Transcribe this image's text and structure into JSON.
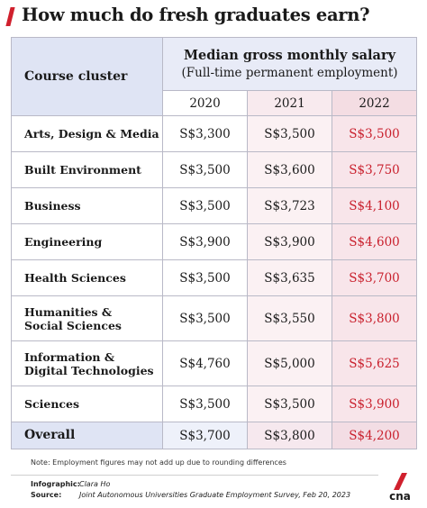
{
  "title": "How much do fresh graduates earn?",
  "header": {
    "course_cluster": "Course cluster",
    "median_title": "Median gross monthly salary",
    "median_sub": "(Full-time permanent employment)"
  },
  "note": "Note: Employment figures may not add up due to rounding differences",
  "credits": {
    "infographic_label": "Infographic:",
    "infographic_value": "Clara Ho",
    "source_label": "Source:",
    "source_value": "Joint Autonomous Universities Graduate Employment Survey, Feb 20, 2023"
  },
  "logo_text": "cna",
  "colors": {
    "accent": "#d0202d",
    "highlight_text": "#c9202d",
    "header_bg": "#dfe4f4"
  },
  "chart_data": {
    "type": "table",
    "title": "How much do fresh graduates earn?",
    "columns": [
      "2020",
      "2021",
      "2022"
    ],
    "rows": [
      {
        "category": "Arts, Design & Media",
        "values": [
          "S$3,300",
          "S$3,500",
          "S$3,500"
        ]
      },
      {
        "category": "Built Environment",
        "values": [
          "S$3,500",
          "S$3,600",
          "S$3,750"
        ]
      },
      {
        "category": "Business",
        "values": [
          "S$3,500",
          "S$3,723",
          "S$4,100"
        ]
      },
      {
        "category": "Engineering",
        "values": [
          "S$3,900",
          "S$3,900",
          "S$4,600"
        ]
      },
      {
        "category": "Health Sciences",
        "values": [
          "S$3,500",
          "S$3,635",
          "S$3,700"
        ]
      },
      {
        "category": "Humanities & Social Sciences",
        "values": [
          "S$3,500",
          "S$3,550",
          "S$3,800"
        ]
      },
      {
        "category": "Information & Digital Technologies",
        "values": [
          "S$4,760",
          "S$5,000",
          "S$5,625"
        ]
      },
      {
        "category": "Sciences",
        "values": [
          "S$3,500",
          "S$3,500",
          "S$3,900"
        ]
      }
    ],
    "overall": {
      "category": "Overall",
      "values": [
        "S$3,700",
        "S$3,800",
        "S$4,200"
      ]
    }
  }
}
